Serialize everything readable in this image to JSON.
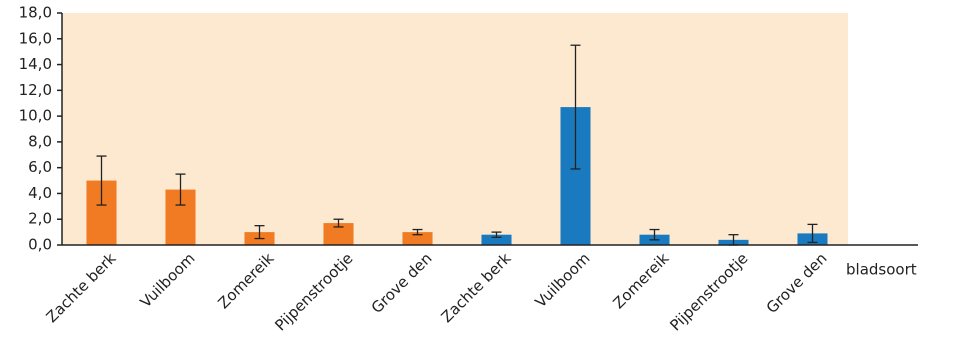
{
  "chart_data": {
    "type": "bar",
    "categories": [
      "Zachte berk",
      "Vuilboom",
      "Zomereik",
      "Pijpenstrootje",
      "Grove den",
      "Zachte berk",
      "Vuilboom",
      "Zomereik",
      "Pijpenstrootje",
      "Grove den"
    ],
    "values": [
      5.0,
      4.3,
      1.0,
      1.7,
      1.0,
      0.8,
      10.7,
      0.8,
      0.4,
      0.9
    ],
    "errors": [
      1.9,
      1.2,
      0.5,
      0.3,
      0.2,
      0.2,
      4.8,
      0.4,
      0.4,
      0.7
    ],
    "colors": [
      "#f07b22",
      "#f07b22",
      "#f07b22",
      "#f07b22",
      "#f07b22",
      "#1a7abf",
      "#1a7abf",
      "#1a7abf",
      "#1a7abf",
      "#1a7abf"
    ],
    "x_label": "bladsoort",
    "ylim": [
      0,
      18
    ],
    "yticks": [
      {
        "value": 0,
        "label": "0,0"
      },
      {
        "value": 2,
        "label": "2,0"
      },
      {
        "value": 4,
        "label": "4,0"
      },
      {
        "value": 6,
        "label": "6,0"
      },
      {
        "value": 8,
        "label": "8,0"
      },
      {
        "value": 10,
        "label": "10,0"
      },
      {
        "value": 12,
        "label": "12,0"
      },
      {
        "value": 14,
        "label": "14,0"
      },
      {
        "value": 16,
        "label": "16,0"
      },
      {
        "value": 18,
        "label": "18,0"
      }
    ],
    "background": "#fde9d0"
  }
}
